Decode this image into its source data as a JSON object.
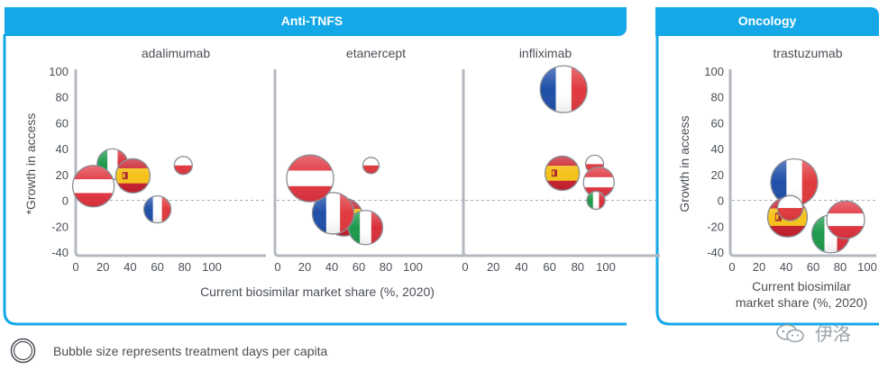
{
  "colors": {
    "accent": "#14a8e8",
    "axis": "#b4b9bf",
    "text": "#4a4f55",
    "zero_line": "#9aa0a6"
  },
  "panels": {
    "anti_tnf": {
      "header": "Anti-TNFS",
      "xlabel": "Current biosimilar market share (%, 2020)"
    },
    "oncology": {
      "header": "Oncology",
      "xlabel_line1": "Current biosimilar",
      "xlabel_line2": "market share (%, 2020)"
    }
  },
  "ylabel_anti_tnf": "*Growth in access",
  "ylabel_oncology": "Growth in access",
  "footnote": "Bubble size represents treatment days per capita",
  "watermark": "伊洛",
  "chart_data": [
    {
      "type": "scatter",
      "title": "adalimumab",
      "xticks": [
        "0",
        "20",
        "40",
        "60",
        "80",
        "100"
      ],
      "yticks": [
        "100",
        "80",
        "60",
        "40",
        "20",
        "0",
        "-20",
        "-40"
      ],
      "xlim": [
        0,
        100
      ],
      "ylim": [
        -40,
        100
      ],
      "points": [
        {
          "country": "Italy",
          "flag": "italy",
          "x": 27,
          "y": 28,
          "size": 17
        },
        {
          "country": "Spain",
          "flag": "spain",
          "x": 42,
          "y": 19,
          "size": 19
        },
        {
          "country": "Austria",
          "flag": "austria",
          "x": 13,
          "y": 11,
          "size": 23
        },
        {
          "country": "France",
          "flag": "france",
          "x": 60,
          "y": -7,
          "size": 15
        },
        {
          "country": "Poland",
          "flag": "poland",
          "x": 79,
          "y": 27,
          "size": 10
        }
      ]
    },
    {
      "type": "scatter",
      "title": "etanercept",
      "xticks": [
        "0",
        "20",
        "40",
        "60",
        "80",
        "100"
      ],
      "yticks": [
        "100",
        "80",
        "60",
        "40",
        "20",
        "0",
        "-20",
        "-40"
      ],
      "xlim": [
        0,
        100
      ],
      "ylim": [
        -40,
        100
      ],
      "points": [
        {
          "country": "Spain",
          "flag": "spain",
          "x": 49,
          "y": -13,
          "size": 21
        },
        {
          "country": "Italy",
          "flag": "italy",
          "x": 65,
          "y": -21,
          "size": 19
        },
        {
          "country": "France",
          "flag": "france",
          "x": 41,
          "y": -10,
          "size": 23
        },
        {
          "country": "Austria",
          "flag": "austria",
          "x": 24,
          "y": 17,
          "size": 26
        },
        {
          "country": "Poland",
          "flag": "poland",
          "x": 69,
          "y": 27,
          "size": 9
        }
      ]
    },
    {
      "type": "scatter",
      "title": "infliximab",
      "xticks": [
        "0",
        "20",
        "40",
        "60",
        "80",
        "100"
      ],
      "yticks": [
        "100",
        "80",
        "60",
        "40",
        "20",
        "0",
        "-20",
        "-40"
      ],
      "xlim": [
        0,
        100
      ],
      "ylim": [
        -40,
        100
      ],
      "points": [
        {
          "country": "France",
          "flag": "france",
          "x": 70,
          "y": 86,
          "size": 26
        },
        {
          "country": "Spain",
          "flag": "spain",
          "x": 69,
          "y": 21,
          "size": 19
        },
        {
          "country": "Poland",
          "flag": "poland",
          "x": 92,
          "y": 28,
          "size": 10
        },
        {
          "country": "Austria",
          "flag": "austria",
          "x": 95,
          "y": 14,
          "size": 17
        },
        {
          "country": "Italy",
          "flag": "italy",
          "x": 93,
          "y": 0,
          "size": 10
        }
      ]
    },
    {
      "type": "scatter",
      "title": "trastuzumab",
      "xticks": [
        "0",
        "20",
        "40",
        "60",
        "80",
        "100"
      ],
      "yticks": [
        "100",
        "80",
        "60",
        "40",
        "20",
        "0",
        "-20",
        "-40"
      ],
      "xlim": [
        0,
        100
      ],
      "ylim": [
        -40,
        100
      ],
      "points": [
        {
          "country": "France",
          "flag": "france",
          "x": 46,
          "y": 14,
          "size": 26
        },
        {
          "country": "Spain",
          "flag": "spain",
          "x": 41,
          "y": -13,
          "size": 22
        },
        {
          "country": "Italy",
          "flag": "italy",
          "x": 73,
          "y": -26,
          "size": 21
        },
        {
          "country": "Poland",
          "flag": "poland",
          "x": 43,
          "y": -6,
          "size": 14
        },
        {
          "country": "Austria",
          "flag": "austria",
          "x": 84,
          "y": -15,
          "size": 21
        }
      ]
    }
  ]
}
